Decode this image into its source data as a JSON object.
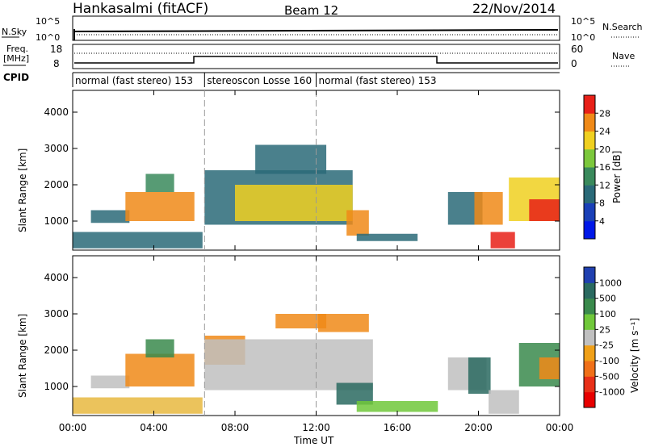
{
  "header": {
    "station": "Hankasalmi (fitACF)",
    "beam": "Beam 12",
    "date": "22/Nov/2014"
  },
  "status_panels": {
    "sky_label": "N.Sky",
    "sky_ticks": [
      "10^5",
      "10^0"
    ],
    "search_label": "N.Search",
    "search_ticks": [
      "10^5",
      "10^0"
    ],
    "freq_label_line1": "Freq.",
    "freq_label_line2": "[MHz]",
    "freq_ticks": [
      "18",
      "8"
    ],
    "nave_label": "Nave",
    "nave_ticks": [
      "60",
      "0"
    ],
    "cpid_label": "CPID",
    "cpid_segments": [
      {
        "label": "normal (fast stereo) 153",
        "start_h": 0,
        "end_h": 6.5
      },
      {
        "label": "stereoscon Losse 160",
        "start_h": 6.5,
        "end_h": 12
      },
      {
        "label": "normal (fast stereo) 153",
        "start_h": 12,
        "end_h": 24
      }
    ]
  },
  "chart_data": [
    {
      "type": "heatmap",
      "quantity": "power",
      "xlabel": "",
      "ylabel": "Slant Range [km]",
      "xlim": [
        0,
        24
      ],
      "ylim": [
        200,
        4600
      ],
      "yticks": [
        "4000",
        "3000",
        "2000",
        "1000"
      ],
      "colorbar_label": "Power [dB]",
      "colorbar_ticks": [
        "28",
        "24",
        "20",
        "16",
        "12",
        "8",
        "4"
      ],
      "colorbar_range": [
        0,
        32
      ],
      "colors": [
        "#0018e8",
        "#1a40b8",
        "#2a6a78",
        "#3a8a5c",
        "#7cc83c",
        "#f0d020",
        "#f08a18",
        "#e82018"
      ],
      "echo_regions": [
        {
          "t0": 0,
          "t1": 6.4,
          "r0": 250,
          "r1": 700,
          "value": 8
        },
        {
          "t0": 0.9,
          "t1": 2.8,
          "r0": 950,
          "r1": 1300,
          "value": 8
        },
        {
          "t0": 2.6,
          "t1": 6.0,
          "r0": 1000,
          "r1": 1800,
          "value": 26
        },
        {
          "t0": 3.6,
          "t1": 5.0,
          "r0": 1800,
          "r1": 2300,
          "value": 14
        },
        {
          "t0": 6.5,
          "t1": 13.8,
          "r0": 900,
          "r1": 2400,
          "value": 10
        },
        {
          "t0": 8.0,
          "t1": 13.8,
          "r0": 1000,
          "r1": 2000,
          "value": 22
        },
        {
          "t0": 9.0,
          "t1": 12.5,
          "r0": 2300,
          "r1": 3100,
          "value": 10
        },
        {
          "t0": 13.5,
          "t1": 14.6,
          "r0": 600,
          "r1": 1300,
          "value": 26
        },
        {
          "t0": 14.0,
          "t1": 17.0,
          "r0": 450,
          "r1": 650,
          "value": 8
        },
        {
          "t0": 18.5,
          "t1": 20.2,
          "r0": 900,
          "r1": 1800,
          "value": 8
        },
        {
          "t0": 19.8,
          "t1": 21.2,
          "r0": 900,
          "r1": 1800,
          "value": 26
        },
        {
          "t0": 20.6,
          "t1": 21.8,
          "r0": 250,
          "r1": 700,
          "value": 28
        },
        {
          "t0": 21.5,
          "t1": 24,
          "r0": 1000,
          "r1": 2200,
          "value": 20
        },
        {
          "t0": 22.5,
          "t1": 24,
          "r0": 1000,
          "r1": 1600,
          "value": 28
        }
      ]
    },
    {
      "type": "heatmap",
      "quantity": "velocity",
      "xlabel": "Time UT",
      "ylabel": "Slant Range [km]",
      "xlim": [
        0,
        24
      ],
      "ylim": [
        200,
        4600
      ],
      "xticks": [
        "00:00",
        "04:00",
        "08:00",
        "12:00",
        "16:00",
        "20:00",
        "00:00"
      ],
      "yticks": [
        "4000",
        "3000",
        "2000",
        "1000"
      ],
      "colorbar_label": "Velocity [m s⁻¹]",
      "colorbar_ticks": [
        "1000",
        "500",
        "100",
        "25",
        "-25",
        "-100",
        "-500",
        "-1000"
      ],
      "colors": [
        "#2040b0",
        "#2a6a60",
        "#3a8a4c",
        "#70c83a",
        "#c0c0c0",
        "#f0a018",
        "#f07018",
        "#e83018",
        "#e80000"
      ],
      "echo_regions": [
        {
          "t0": 0,
          "t1": 6.4,
          "r0": 250,
          "r1": 700,
          "value": "#e8b840"
        },
        {
          "t0": 0.9,
          "t1": 2.8,
          "r0": 950,
          "r1": 1300,
          "value": "#c0c0c0"
        },
        {
          "t0": 2.6,
          "t1": 6.0,
          "r0": 1000,
          "r1": 1900,
          "value": "#f08a18"
        },
        {
          "t0": 3.6,
          "t1": 5.0,
          "r0": 1800,
          "r1": 2300,
          "value": "#3a8a4c"
        },
        {
          "t0": 6.5,
          "t1": 8.5,
          "r0": 1600,
          "r1": 2400,
          "value": "#f08a18"
        },
        {
          "t0": 6.5,
          "t1": 14.8,
          "r0": 900,
          "r1": 2300,
          "value": "#c0c0c0"
        },
        {
          "t0": 10.0,
          "t1": 12.5,
          "r0": 2600,
          "r1": 3000,
          "value": "#f08a18"
        },
        {
          "t0": 12.1,
          "t1": 14.6,
          "r0": 2500,
          "r1": 3000,
          "value": "#f08a18"
        },
        {
          "t0": 13.0,
          "t1": 14.8,
          "r0": 500,
          "r1": 1100,
          "value": "#2a6a60"
        },
        {
          "t0": 14.0,
          "t1": 18.0,
          "r0": 300,
          "r1": 600,
          "value": "#70c83a"
        },
        {
          "t0": 18.5,
          "t1": 20.4,
          "r0": 900,
          "r1": 1800,
          "value": "#c0c0c0"
        },
        {
          "t0": 19.5,
          "t1": 20.6,
          "r0": 800,
          "r1": 1800,
          "value": "#2a6a60"
        },
        {
          "t0": 20.5,
          "t1": 22.0,
          "r0": 250,
          "r1": 900,
          "value": "#c0c0c0"
        },
        {
          "t0": 22.0,
          "t1": 24,
          "r0": 1000,
          "r1": 2200,
          "value": "#3a8a4c"
        },
        {
          "t0": 23.0,
          "t1": 24,
          "r0": 1200,
          "r1": 1800,
          "value": "#f08a18"
        }
      ]
    }
  ]
}
